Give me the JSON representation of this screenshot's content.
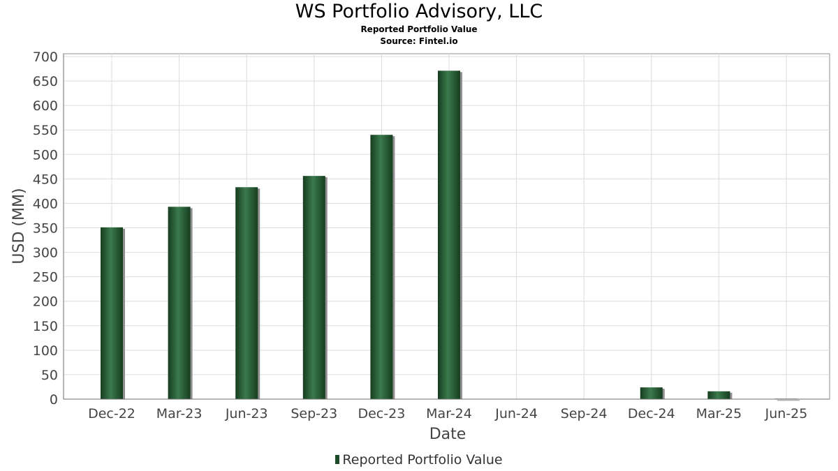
{
  "chart_data": {
    "type": "bar",
    "title": "WS Portfolio Advisory, LLC",
    "subtitle": "Reported Portfolio Value",
    "source": "Source: Fintel.io",
    "xlabel": "Date",
    "ylabel": "USD (MM)",
    "categories": [
      "Dec-22",
      "Mar-23",
      "Jun-23",
      "Sep-23",
      "Dec-23",
      "Mar-24",
      "Jun-24",
      "Sep-24",
      "Dec-24",
      "Mar-25",
      "Jun-25"
    ],
    "series": [
      {
        "name": "Reported Portfolio Value",
        "values": [
          351,
          393,
          433,
          456,
          540,
          671,
          0,
          0,
          24,
          16,
          1
        ]
      }
    ],
    "ylim": [
      0,
      700
    ],
    "yticks": [
      0,
      50,
      100,
      150,
      200,
      250,
      300,
      350,
      400,
      450,
      500,
      550,
      600,
      650,
      700
    ],
    "grid": true,
    "legend_position": "bottom",
    "colors": {
      "bar": "#1d4a28",
      "bar_highlight": "#3b7a4c",
      "shadow": "#8f8f8f",
      "grid": "#dcdcdc"
    }
  }
}
